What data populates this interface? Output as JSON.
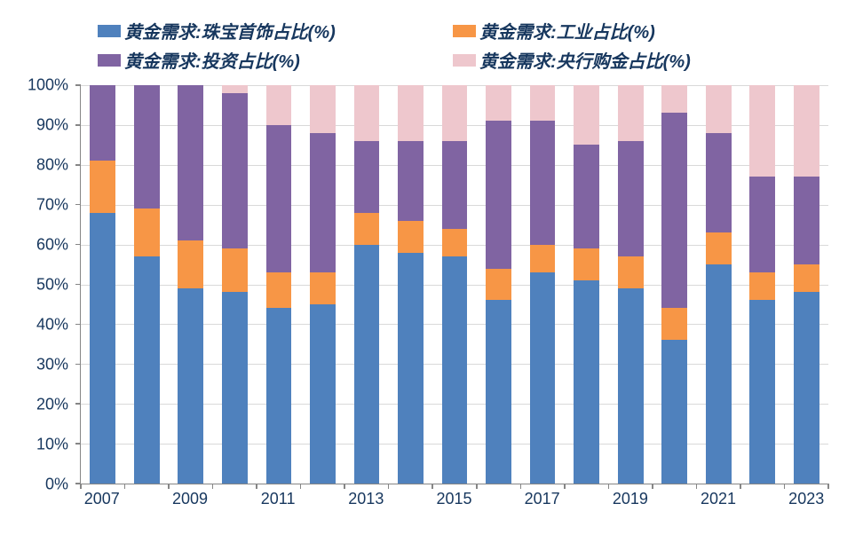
{
  "chart": {
    "type": "stacked-bar",
    "background_color": "#ffffff",
    "grid_color": "#d9d9d9",
    "axis_color": "#868686",
    "text_color": "#17375e",
    "label_fontsize": 18,
    "legend_fontsize": 20,
    "ylim": [
      0,
      100
    ],
    "ytick_step": 10,
    "y_suffix": "%",
    "bar_width_ratio": 0.58,
    "series": [
      {
        "key": "jewelry",
        "label": "黄金需求:珠宝首饰占比(%)",
        "color": "#4f81bd"
      },
      {
        "key": "industrial",
        "label": "黄金需求:工业占比(%)",
        "color": "#f79646"
      },
      {
        "key": "investment",
        "label": "黄金需求:投资占比(%)",
        "color": "#8064a2"
      },
      {
        "key": "central",
        "label": "黄金需求:央行购金占比(%)",
        "color": "#eec7cd"
      }
    ],
    "categories": [
      "2007",
      "2008",
      "2009",
      "2010",
      "2011",
      "2012",
      "2013",
      "2014",
      "2015",
      "2016",
      "2017",
      "2018",
      "2019",
      "2020",
      "2021",
      "2022",
      "2023"
    ],
    "x_labels_shown": [
      "2007",
      "2009",
      "2011",
      "2013",
      "2015",
      "2017",
      "2019",
      "2021",
      "2023"
    ],
    "data": {
      "jewelry": [
        68,
        57,
        49,
        48,
        44,
        45,
        60,
        58,
        57,
        46,
        53,
        51,
        49,
        36,
        55,
        46,
        48
      ],
      "industrial": [
        13,
        12,
        12,
        11,
        9,
        8,
        8,
        8,
        7,
        8,
        7,
        8,
        8,
        8,
        8,
        7,
        7
      ],
      "investment": [
        19,
        31,
        39,
        39,
        37,
        35,
        18,
        20,
        22,
        37,
        31,
        26,
        29,
        49,
        25,
        24,
        22
      ],
      "central": [
        0,
        0,
        0,
        2,
        10,
        12,
        14,
        14,
        14,
        9,
        9,
        15,
        14,
        7,
        12,
        23,
        23
      ]
    }
  }
}
